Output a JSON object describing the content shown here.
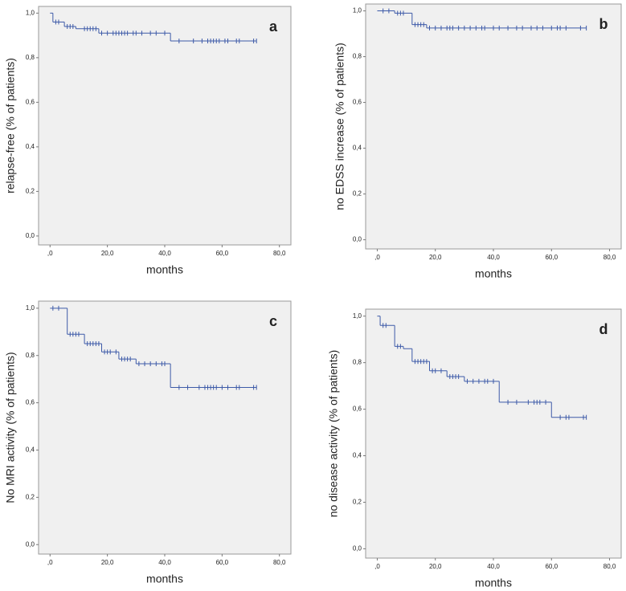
{
  "chart_data": [
    {
      "type": "step",
      "annotation": "a",
      "xlabel": "months",
      "ylabel": "relapse-free (% of patients)",
      "color": "#3d5aa8",
      "xlim": [
        -4,
        84
      ],
      "ylim": [
        -0.04,
        1.03
      ],
      "xticks": [
        {
          "value": 0,
          "label": ",0"
        },
        {
          "value": 20,
          "label": "20,0"
        },
        {
          "value": 40,
          "label": "40,0"
        },
        {
          "value": 60,
          "label": "60,0"
        },
        {
          "value": 80,
          "label": "80,0"
        }
      ],
      "yticks": [
        {
          "value": 0,
          "label": "0,0"
        },
        {
          "value": 0.2,
          "label": "0,2"
        },
        {
          "value": 0.4,
          "label": "0,4"
        },
        {
          "value": 0.6,
          "label": "0,6"
        },
        {
          "value": 0.8,
          "label": "0,8"
        },
        {
          "value": 1,
          "label": "1,0"
        }
      ],
      "x": [
        0,
        1,
        5,
        9,
        17,
        42,
        72
      ],
      "values": [
        1,
        0.96,
        0.94,
        0.93,
        0.91,
        0.875,
        0.875
      ],
      "censored": {
        "x": [
          2,
          3,
          6,
          7,
          8,
          12,
          13,
          14,
          15,
          16,
          18,
          20,
          22,
          23,
          24,
          25,
          26,
          27,
          29,
          30,
          32,
          35,
          37,
          40,
          45,
          50,
          53,
          55,
          56,
          57,
          58,
          59,
          61,
          62,
          65,
          66,
          71,
          72
        ],
        "values": [
          0.96,
          0.96,
          0.94,
          0.94,
          0.94,
          0.93,
          0.93,
          0.93,
          0.93,
          0.93,
          0.91,
          0.91,
          0.91,
          0.91,
          0.91,
          0.91,
          0.91,
          0.91,
          0.91,
          0.91,
          0.91,
          0.91,
          0.91,
          0.91,
          0.875,
          0.875,
          0.875,
          0.875,
          0.875,
          0.875,
          0.875,
          0.875,
          0.875,
          0.875,
          0.875,
          0.875,
          0.875,
          0.875
        ]
      }
    },
    {
      "type": "step",
      "annotation": "b",
      "xlabel": "months",
      "ylabel": "no EDSS increase (% of patients)",
      "color": "#3d5aa8",
      "xlim": [
        -4,
        84
      ],
      "ylim": [
        -0.04,
        1.03
      ],
      "xticks": [
        {
          "value": 0,
          "label": ",0"
        },
        {
          "value": 20,
          "label": "20,0"
        },
        {
          "value": 40,
          "label": "40,0"
        },
        {
          "value": 60,
          "label": "60,0"
        },
        {
          "value": 80,
          "label": "80,0"
        }
      ],
      "yticks": [
        {
          "value": 0,
          "label": "0,0"
        },
        {
          "value": 0.2,
          "label": "0,2"
        },
        {
          "value": 0.4,
          "label": "0,4"
        },
        {
          "value": 0.6,
          "label": "0,6"
        },
        {
          "value": 0.8,
          "label": "0,8"
        },
        {
          "value": 1,
          "label": "1,0"
        }
      ],
      "x": [
        0,
        6,
        12,
        17,
        72
      ],
      "values": [
        1,
        0.99,
        0.94,
        0.925,
        0.925
      ],
      "censored": {
        "x": [
          2,
          4,
          7,
          8,
          9,
          13,
          14,
          15,
          16,
          18,
          20,
          22,
          24,
          25,
          26,
          28,
          30,
          32,
          34,
          36,
          37,
          40,
          42,
          45,
          48,
          50,
          53,
          55,
          57,
          60,
          62,
          63,
          65,
          70,
          72
        ],
        "values": [
          1,
          1,
          0.99,
          0.99,
          0.99,
          0.94,
          0.94,
          0.94,
          0.94,
          0.925,
          0.925,
          0.925,
          0.925,
          0.925,
          0.925,
          0.925,
          0.925,
          0.925,
          0.925,
          0.925,
          0.925,
          0.925,
          0.925,
          0.925,
          0.925,
          0.925,
          0.925,
          0.925,
          0.925,
          0.925,
          0.925,
          0.925,
          0.925,
          0.925,
          0.925
        ]
      }
    },
    {
      "type": "step",
      "annotation": "c",
      "xlabel": "months",
      "ylabel": "No MRI activity (% of patients)",
      "color": "#3d5aa8",
      "xlim": [
        -4,
        84
      ],
      "ylim": [
        -0.04,
        1.03
      ],
      "xticks": [
        {
          "value": 0,
          "label": ",0"
        },
        {
          "value": 20,
          "label": "20,0"
        },
        {
          "value": 40,
          "label": "40,0"
        },
        {
          "value": 60,
          "label": "60,0"
        },
        {
          "value": 80,
          "label": "80,0"
        }
      ],
      "yticks": [
        {
          "value": 0,
          "label": "0,0"
        },
        {
          "value": 0.2,
          "label": "0,2"
        },
        {
          "value": 0.4,
          "label": "0,4"
        },
        {
          "value": 0.6,
          "label": "0,6"
        },
        {
          "value": 0.8,
          "label": "0,8"
        },
        {
          "value": 1,
          "label": "1,0"
        }
      ],
      "x": [
        0,
        6,
        12,
        18,
        24,
        30,
        42,
        72
      ],
      "values": [
        1,
        0.89,
        0.85,
        0.815,
        0.785,
        0.765,
        0.665,
        0.665
      ],
      "censored": {
        "x": [
          1,
          3,
          7,
          8,
          9,
          10,
          13,
          14,
          15,
          16,
          17,
          19,
          20,
          21,
          23,
          25,
          26,
          27,
          28,
          31,
          33,
          35,
          37,
          39,
          40,
          45,
          48,
          52,
          54,
          55,
          56,
          57,
          58,
          60,
          62,
          65,
          66,
          71,
          72
        ],
        "values": [
          1,
          1,
          0.89,
          0.89,
          0.89,
          0.89,
          0.85,
          0.85,
          0.85,
          0.85,
          0.85,
          0.815,
          0.815,
          0.815,
          0.815,
          0.785,
          0.785,
          0.785,
          0.785,
          0.765,
          0.765,
          0.765,
          0.765,
          0.765,
          0.765,
          0.665,
          0.665,
          0.665,
          0.665,
          0.665,
          0.665,
          0.665,
          0.665,
          0.665,
          0.665,
          0.665,
          0.665,
          0.665,
          0.665
        ]
      }
    },
    {
      "type": "step",
      "annotation": "d",
      "xlabel": "months",
      "ylabel": "no disease activity (% of patients)",
      "color": "#3d5aa8",
      "xlim": [
        -4,
        84
      ],
      "ylim": [
        -0.04,
        1.03
      ],
      "xticks": [
        {
          "value": 0,
          "label": ",0"
        },
        {
          "value": 20,
          "label": "20,0"
        },
        {
          "value": 40,
          "label": "40,0"
        },
        {
          "value": 60,
          "label": "60,0"
        },
        {
          "value": 80,
          "label": "80,0"
        }
      ],
      "yticks": [
        {
          "value": 0,
          "label": "0,0"
        },
        {
          "value": 0.2,
          "label": "0,2"
        },
        {
          "value": 0.4,
          "label": "0,4"
        },
        {
          "value": 0.6,
          "label": "0,6"
        },
        {
          "value": 0.8,
          "label": "0,8"
        },
        {
          "value": 1,
          "label": "1,0"
        }
      ],
      "x": [
        0,
        1,
        6,
        9,
        12,
        18,
        24,
        30,
        42,
        60,
        72
      ],
      "values": [
        1,
        0.96,
        0.87,
        0.86,
        0.805,
        0.765,
        0.74,
        0.72,
        0.63,
        0.565,
        0.565
      ],
      "censored": {
        "x": [
          2,
          3,
          7,
          8,
          13,
          14,
          15,
          16,
          17,
          19,
          20,
          22,
          25,
          26,
          27,
          28,
          31,
          33,
          35,
          37,
          38,
          40,
          45,
          48,
          52,
          54,
          55,
          56,
          58,
          63,
          65,
          66,
          71,
          72
        ],
        "values": [
          0.96,
          0.96,
          0.87,
          0.87,
          0.805,
          0.805,
          0.805,
          0.805,
          0.805,
          0.765,
          0.765,
          0.765,
          0.74,
          0.74,
          0.74,
          0.74,
          0.72,
          0.72,
          0.72,
          0.72,
          0.72,
          0.72,
          0.63,
          0.63,
          0.63,
          0.63,
          0.63,
          0.63,
          0.63,
          0.565,
          0.565,
          0.565,
          0.565,
          0.565
        ]
      }
    }
  ]
}
